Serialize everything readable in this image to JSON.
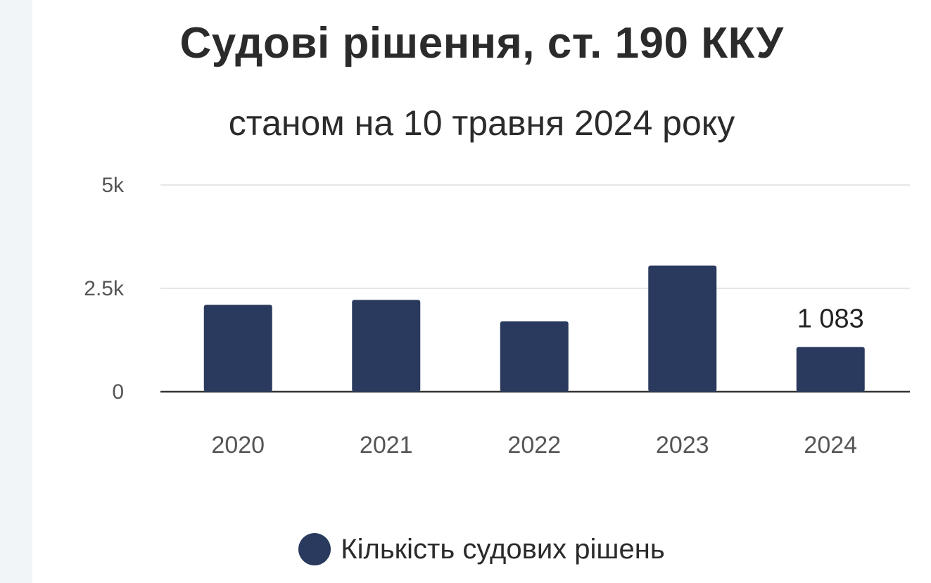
{
  "title": "Судові рішення, ст. 190 ККУ",
  "subtitle": "станом на 10 травня 2024 року",
  "legend_label": "Кількість судових рішень",
  "colors": {
    "bar": "#2a3a5e",
    "grid": "#e6e6e6",
    "axis": "#333333",
    "tick_text": "#555555",
    "label_text": "#222222"
  },
  "chart_data": {
    "type": "bar",
    "title": "Судові рішення, ст. 190 ККУ",
    "subtitle": "станом на 10 травня 2024 року",
    "categories": [
      "2020",
      "2021",
      "2022",
      "2023",
      "2024"
    ],
    "series": [
      {
        "name": "Кількість судових рішень",
        "values": [
          2100,
          2220,
          1700,
          3050,
          1083
        ]
      }
    ],
    "ylim": [
      0,
      5000
    ],
    "y_ticks": [
      {
        "value": 0,
        "label": "0"
      },
      {
        "value": 2500,
        "label": "2.5k"
      },
      {
        "value": 5000,
        "label": "5k"
      }
    ],
    "data_labels": [
      {
        "category": "2024",
        "text": "1 083"
      }
    ],
    "grid": true,
    "legend_position": "bottom"
  }
}
